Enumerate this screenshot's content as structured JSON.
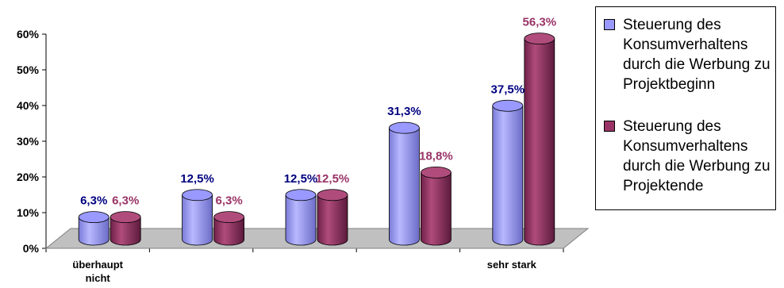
{
  "chart_data": {
    "type": "bar",
    "categories": [
      "überhaupt nicht",
      "",
      "",
      "",
      "sehr stark"
    ],
    "series": [
      {
        "name": "Steuerung des Konsumverhaltens durch die Werbung zu Projektbeginn",
        "values": [
          6.3,
          12.5,
          12.5,
          31.3,
          37.5
        ],
        "labels": [
          "6,3%",
          "12,5%",
          "12,5%",
          "31,3%",
          "37,5%"
        ]
      },
      {
        "name": "Steuerung des Konsumverhaltens durch die Werbung zu Projektende",
        "values": [
          6.3,
          6.3,
          12.5,
          18.8,
          56.3
        ],
        "labels": [
          "6,3%",
          "6,3%",
          "12,5%",
          "18,8%",
          "56,3%"
        ]
      }
    ],
    "y_ticks": [
      "0%",
      "10%",
      "20%",
      "30%",
      "40%",
      "50%",
      "60%"
    ],
    "ylim": [
      0,
      60
    ],
    "legend_position": "right",
    "colors": {
      "series1": "#9999ff",
      "series2": "#993366",
      "label1": "#000080",
      "label2": "#993366",
      "floor": "#c0c0c0"
    }
  }
}
